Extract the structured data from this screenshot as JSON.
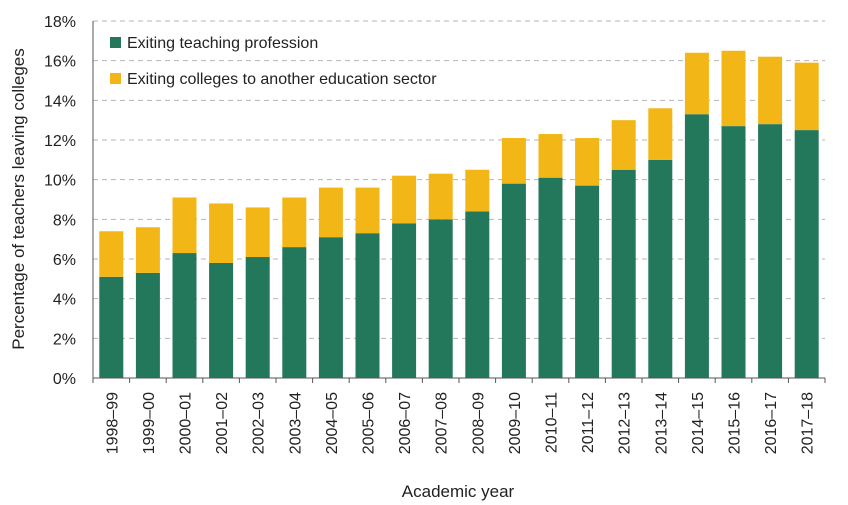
{
  "chart_data": {
    "type": "bar",
    "stacked": true,
    "categories": [
      "1998–99",
      "1999–00",
      "2000–01",
      "2001–02",
      "2002–03",
      "2003–04",
      "2004–05",
      "2005–06",
      "2006–07",
      "2007–08",
      "2008–09",
      "2009–10",
      "2010–11",
      "2011–12",
      "2012–13",
      "2013–14",
      "2014–15",
      "2015–16",
      "2016–17",
      "2017–18"
    ],
    "series": [
      {
        "name": "Exiting teaching profession",
        "color": "#23775a",
        "values": [
          5.1,
          5.3,
          6.3,
          5.8,
          6.1,
          6.6,
          7.1,
          7.3,
          7.8,
          8.0,
          8.4,
          9.8,
          10.1,
          9.7,
          10.5,
          11.0,
          13.3,
          12.7,
          12.8,
          12.5
        ]
      },
      {
        "name": "Exiting colleges to another education sector",
        "color": "#f2b617",
        "values": [
          2.3,
          2.3,
          2.8,
          3.0,
          2.5,
          2.5,
          2.5,
          2.3,
          2.4,
          2.3,
          2.1,
          2.3,
          2.2,
          2.4,
          2.5,
          2.6,
          3.1,
          3.8,
          3.4,
          3.4
        ]
      }
    ],
    "title": "",
    "xlabel": "Academic year",
    "ylabel": "Percentage of teachers leaving colleges",
    "ylim": [
      0,
      18
    ],
    "yticks": [
      "0%",
      "2%",
      "4%",
      "6%",
      "8%",
      "10%",
      "12%",
      "14%",
      "16%",
      "18%"
    ],
    "grid": "horizontal-dashed",
    "legend_position": "top-left"
  }
}
